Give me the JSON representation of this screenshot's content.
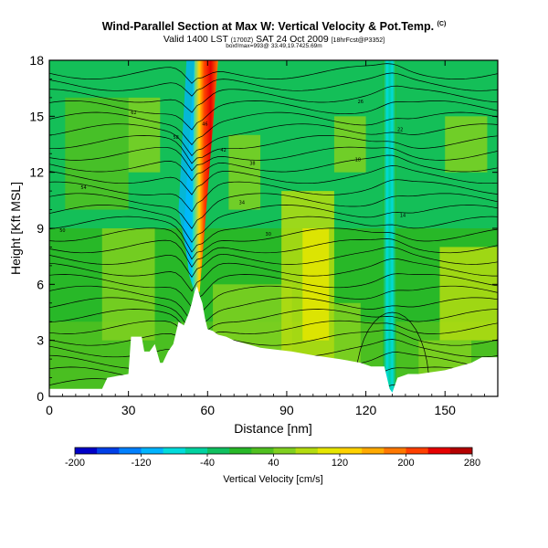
{
  "header": {
    "title": "Wind-Parallel Section at Max W: Vertical Velocity & Pot.Temp.",
    "title_suffix": "(C)",
    "valid_main": "Valid 1400 LST",
    "valid_small1": "(1700Z)",
    "valid_date": "SAT 24 Oct 2009",
    "valid_small2": "[18hrFcst@P3352]",
    "subline": "boxf/max=993@ 33.49,19.7425.69m"
  },
  "chart_data": {
    "type": "heatmap",
    "xlabel": "Distance [nm]",
    "ylabel": "Height [Kft MSL]",
    "xlim": [
      0,
      170
    ],
    "ylim": [
      0,
      18
    ],
    "x_ticks": [
      "0",
      "30",
      "60",
      "90",
      "120",
      "150"
    ],
    "y_ticks": [
      "0",
      "3",
      "6",
      "9",
      "12",
      "15",
      "18"
    ],
    "colorbar": {
      "label": "Vertical Velocity [cm/s]",
      "range": [
        -200,
        280
      ],
      "tick_labels": [
        "-200",
        "-120",
        "-40",
        "40",
        "120",
        "200",
        "280"
      ],
      "colors": [
        "#0000c8",
        "#0040e8",
        "#0080ff",
        "#00b4ff",
        "#00dcdc",
        "#00d2a0",
        "#10c060",
        "#28b828",
        "#50c020",
        "#80d020",
        "#b4dc10",
        "#e6e600",
        "#ffd200",
        "#ffaa00",
        "#ff7800",
        "#ff4000",
        "#e60000",
        "#b40000"
      ]
    },
    "terrain_profile": {
      "x": [
        0,
        3,
        6,
        8,
        11,
        15,
        20,
        22,
        30,
        31,
        35,
        36,
        38,
        40,
        42,
        43,
        45,
        47,
        49,
        51,
        53,
        54,
        55,
        56,
        57,
        58,
        59,
        60,
        62,
        64,
        67,
        70,
        80,
        92,
        100,
        110,
        118,
        122,
        127,
        128,
        129,
        130,
        131,
        132,
        136,
        140,
        150,
        160,
        164,
        170
      ],
      "y": [
        0.4,
        0.4,
        0.4,
        0.4,
        0.4,
        0.4,
        0.4,
        1.0,
        1.2,
        3.2,
        3.2,
        2.4,
        2.4,
        2.8,
        1.8,
        1.8,
        2.4,
        2.8,
        4.0,
        3.8,
        4.5,
        5.0,
        5.6,
        5.9,
        5.4,
        5.0,
        4.2,
        3.6,
        3.5,
        3.3,
        3.2,
        3.0,
        2.6,
        2.4,
        2.2,
        2.0,
        1.8,
        1.6,
        1.6,
        1.0,
        0.4,
        0.2,
        0.6,
        1.0,
        1.2,
        1.2,
        1.4,
        1.8,
        2.1,
        2.1
      ]
    },
    "isentrope_labels": [
      "62",
      "58",
      "54",
      "50",
      "46",
      "42",
      "38",
      "34",
      "30",
      "26",
      "22",
      "18",
      "14"
    ]
  }
}
